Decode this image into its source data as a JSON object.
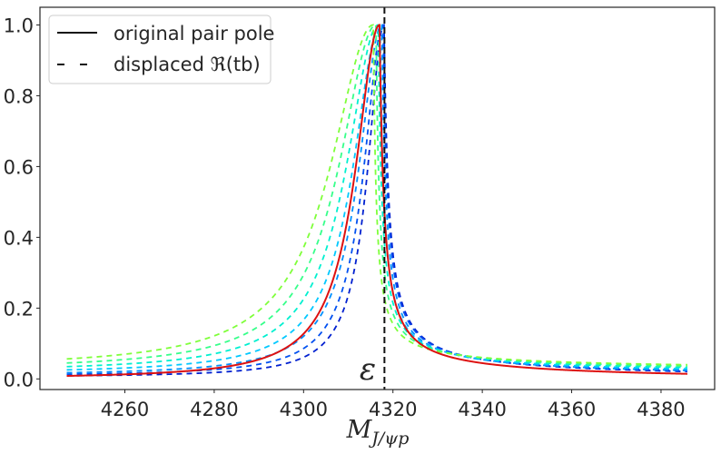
{
  "chart_data": {
    "type": "line",
    "title": "",
    "xlabel": "M_{J/ψp}",
    "xlabel_main": "M",
    "xlabel_sub": "J/ψp",
    "ylabel": "",
    "xlim": [
      4241,
      4392
    ],
    "ylim": [
      -0.03,
      1.05
    ],
    "x_ticks": [
      4260,
      4280,
      4300,
      4320,
      4340,
      4360,
      4380
    ],
    "y_ticks": [
      0.0,
      0.2,
      0.4,
      0.6,
      0.8,
      1.0
    ],
    "x_tick_labels": [
      "4260",
      "4280",
      "4300",
      "4320",
      "4340",
      "4360",
      "4380"
    ],
    "y_tick_labels": [
      "0.0",
      "0.2",
      "0.4",
      "0.6",
      "0.8",
      "1.0"
    ],
    "x_range": [
      4247,
      4386
    ],
    "vline": {
      "x": 4318.1,
      "label": "ε"
    },
    "legend": {
      "position": "top-left",
      "entries": [
        {
          "label": "original pair pole",
          "style": "solid"
        },
        {
          "label": "displaced ℜ(tb)",
          "style": "dashed"
        }
      ]
    },
    "series": [
      {
        "name": "original pair pole",
        "style": "solid",
        "color": "#dd1111",
        "peak_x": 4317.0,
        "width_left": 6.5,
        "tail_right": 0.95,
        "baseline": 0.0
      },
      {
        "name": "displaced 1",
        "style": "dashed",
        "color": "#7fff3a",
        "peak_x": 4315.6,
        "width_left": 11.5,
        "tail_right": 0.6,
        "baseline": 0.03
      },
      {
        "name": "displaced 2",
        "style": "dashed",
        "color": "#36ff8a",
        "peak_x": 4316.2,
        "width_left": 10.0,
        "tail_right": 0.7,
        "baseline": 0.025
      },
      {
        "name": "displaced 3",
        "style": "dashed",
        "color": "#00f0d0",
        "peak_x": 4316.7,
        "width_left": 8.6,
        "tail_right": 0.78,
        "baseline": 0.02
      },
      {
        "name": "displaced 4",
        "style": "dashed",
        "color": "#00c8ff",
        "peak_x": 4317.1,
        "width_left": 7.3,
        "tail_right": 0.85,
        "baseline": 0.015
      },
      {
        "name": "displaced 5",
        "style": "dashed",
        "color": "#0090ff",
        "peak_x": 4317.5,
        "width_left": 6.2,
        "tail_right": 0.92,
        "baseline": 0.01
      },
      {
        "name": "displaced 6",
        "style": "dashed",
        "color": "#0050f0",
        "peak_x": 4317.8,
        "width_left": 5.2,
        "tail_right": 1.0,
        "baseline": 0.008
      },
      {
        "name": "displaced 7",
        "style": "dashed",
        "color": "#0020d0",
        "peak_x": 4318.0,
        "width_left": 4.4,
        "tail_right": 1.05,
        "baseline": 0.005
      }
    ]
  }
}
